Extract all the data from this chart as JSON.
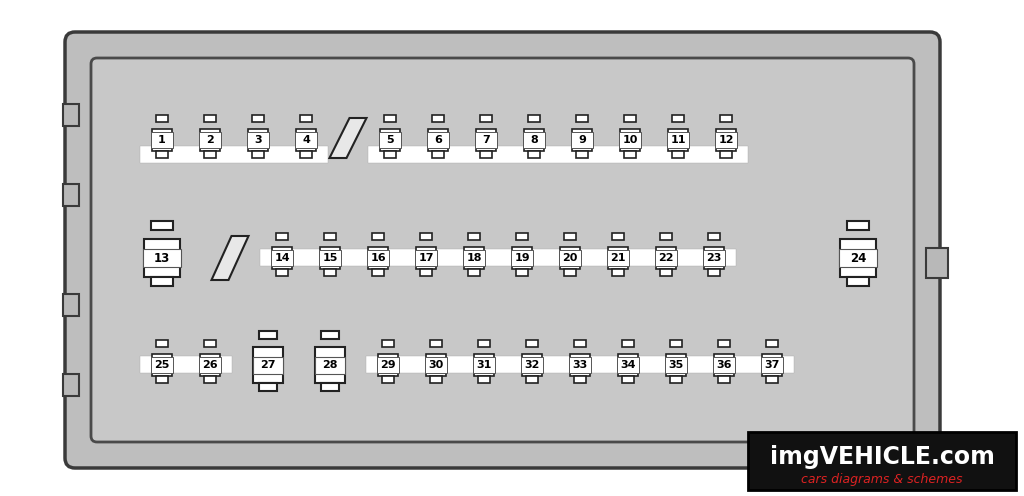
{
  "bg_color": "#ffffff",
  "box_fill": "#c0c0c0",
  "box_stroke": "#555555",
  "inner_fill": "#c8c8c8",
  "fuse_fill": "#ffffff",
  "fuse_stroke": "#222222",
  "label_bg": "#ffffff",
  "label_color": "#000000",
  "watermark_bg": "#111111",
  "watermark_text1": "imgVEHICLE.com",
  "watermark_text2": "cars diagrams & schemes",
  "watermark_color1": "#ffffff",
  "watermark_color2": "#dd2222",
  "row1_labels": [
    "1",
    "2",
    "3",
    "4",
    "5",
    "6",
    "7",
    "8",
    "9",
    "10",
    "11",
    "12"
  ],
  "row2_labels": [
    "13",
    "14",
    "15",
    "16",
    "17",
    "18",
    "19",
    "20",
    "21",
    "22",
    "23",
    "24"
  ],
  "row3_labels": [
    "25",
    "26",
    "27",
    "28",
    "29",
    "30",
    "31",
    "32",
    "33",
    "34",
    "35",
    "36",
    "37"
  ],
  "figsize": [
    10.24,
    4.96
  ],
  "dpi": 100
}
